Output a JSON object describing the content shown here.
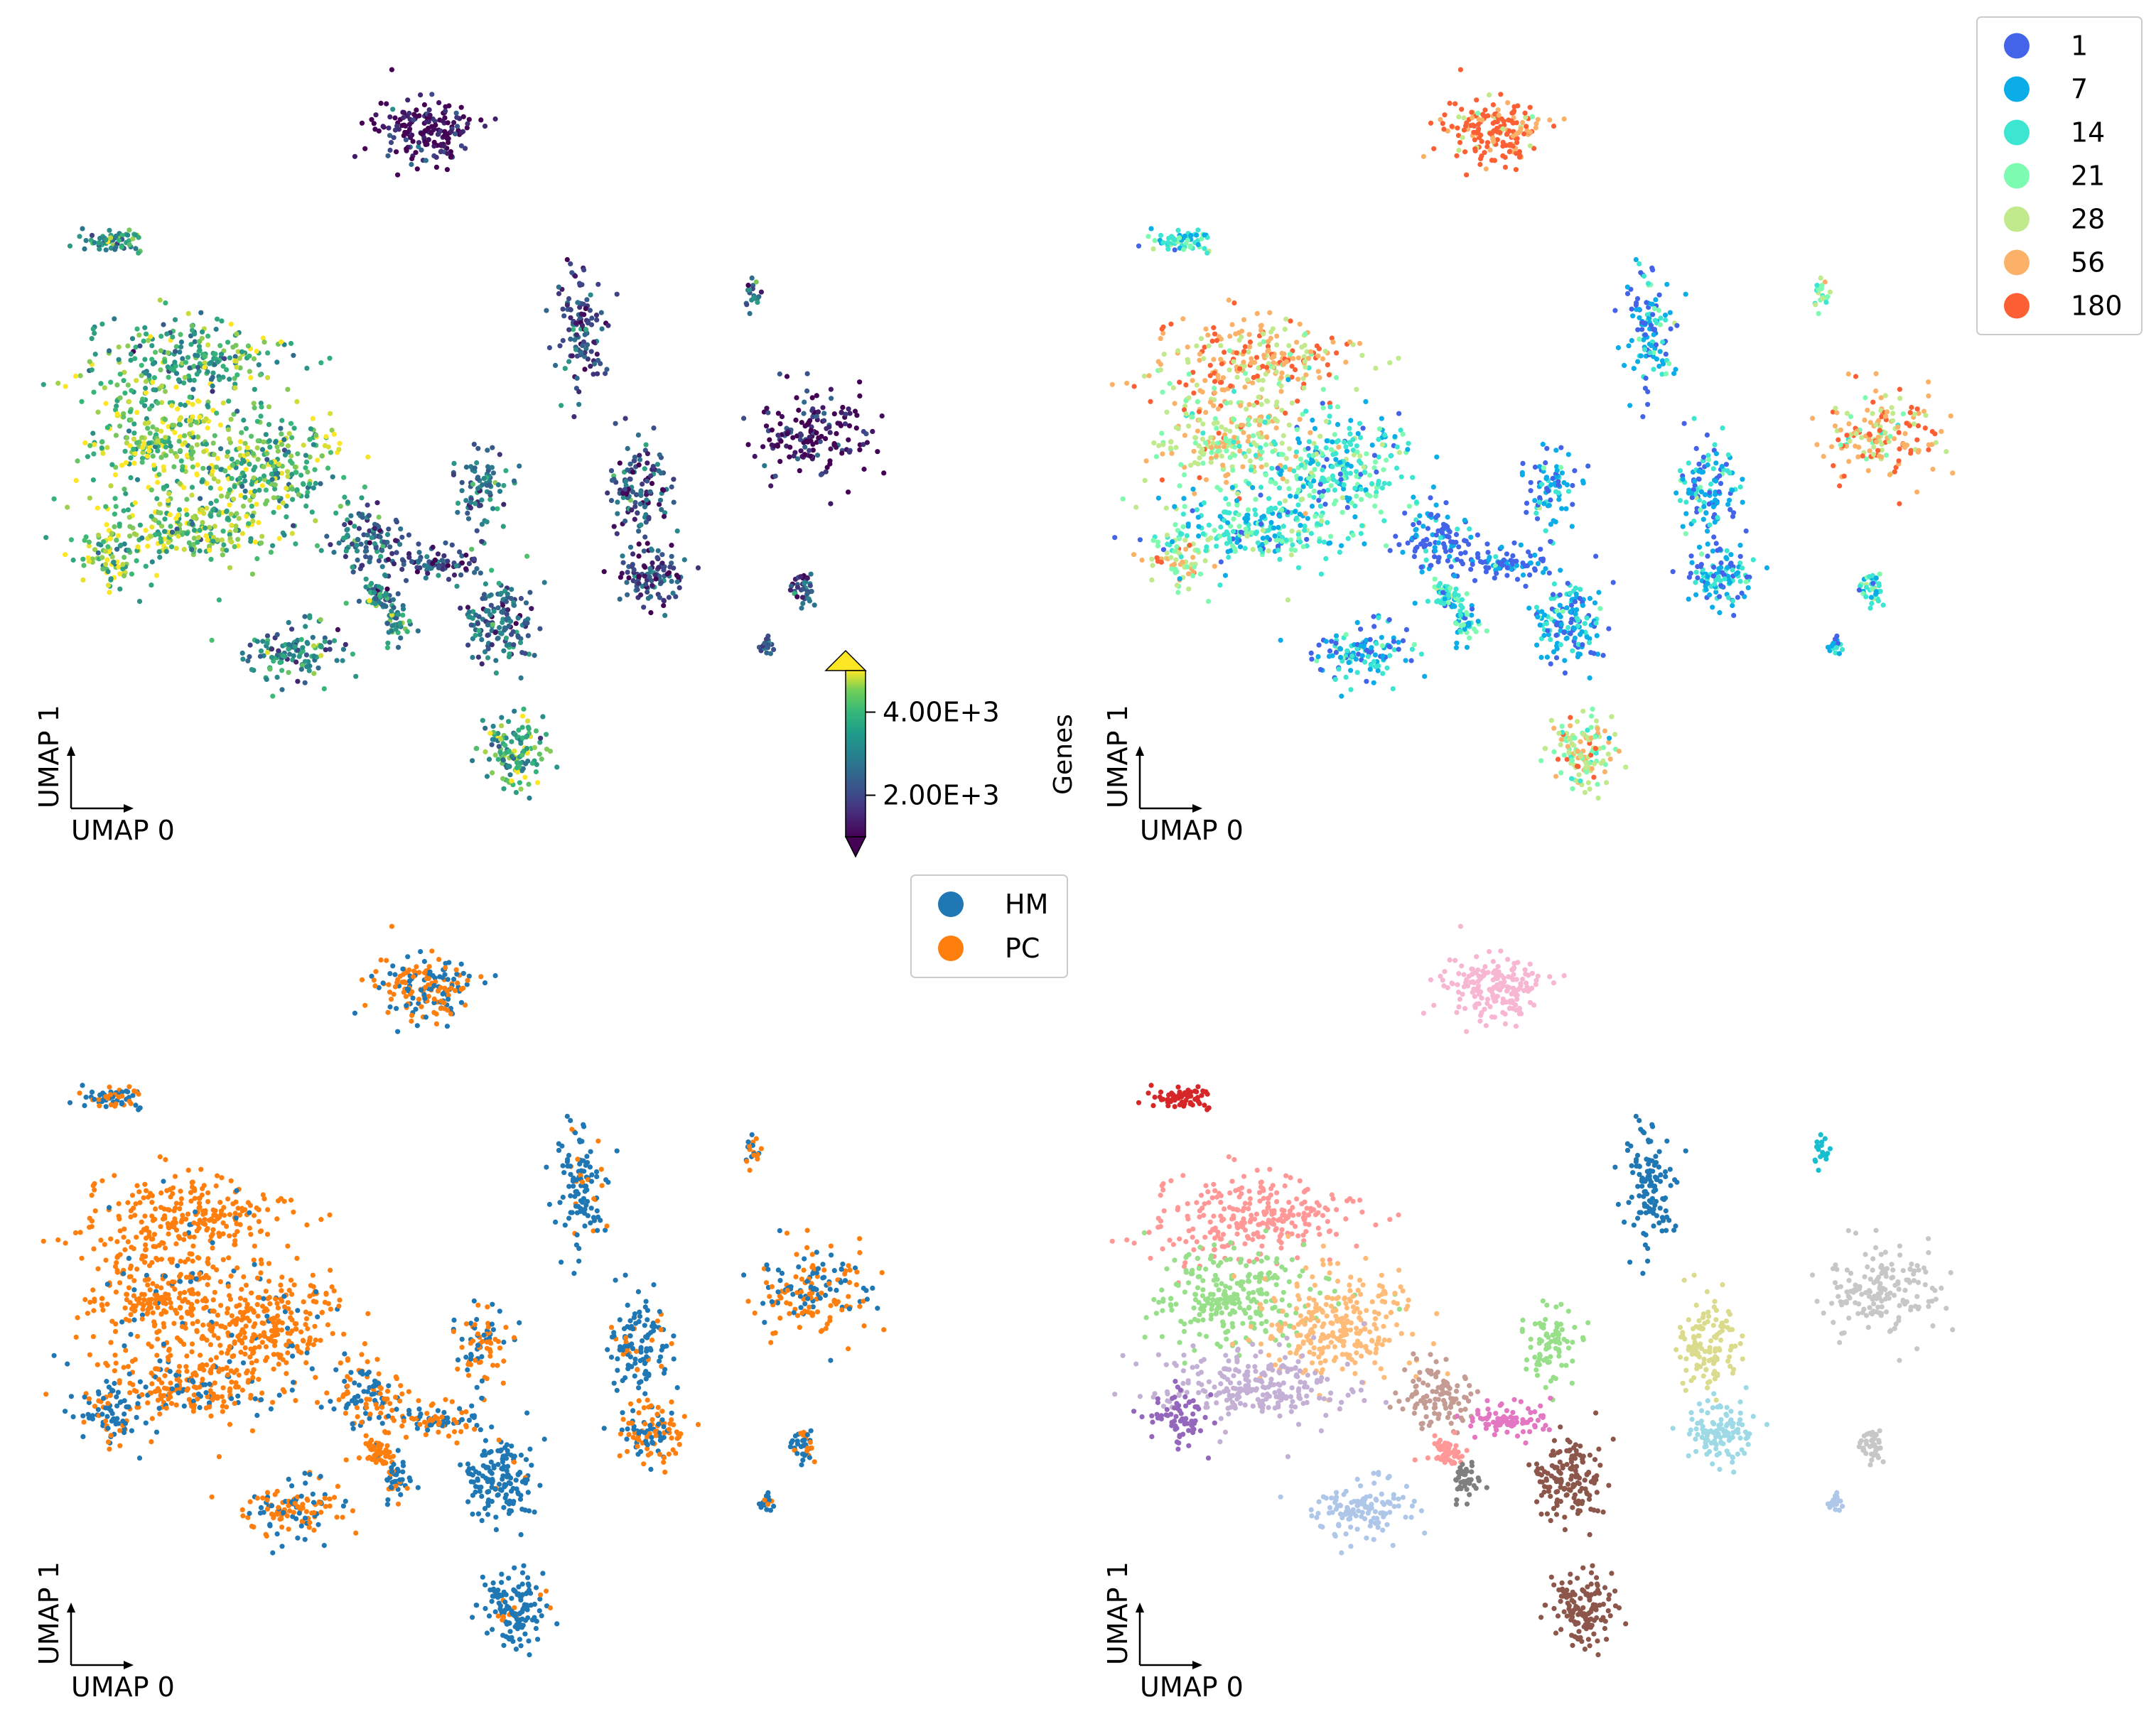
{
  "chart_data": [
    {
      "type": "scatter",
      "panel": "top-left",
      "color_by": "Genes",
      "xlabel": "UMAP 0",
      "ylabel": "UMAP 1",
      "colormap": "viridis",
      "colorbar": {
        "label": "Genes",
        "ticks": [
          {
            "value": 2000,
            "label": "2.00E+3"
          },
          {
            "value": 4000,
            "label": "4.00E+3"
          }
        ],
        "range": [
          1000,
          5000
        ],
        "extend": "both"
      }
    },
    {
      "type": "scatter",
      "panel": "top-right",
      "color_by": "day",
      "xlabel": "UMAP 0",
      "ylabel": "UMAP 1",
      "legend": {
        "placement": "top-right",
        "entries": [
          {
            "label": "1",
            "color": "#4363e8"
          },
          {
            "label": "7",
            "color": "#0aade8"
          },
          {
            "label": "14",
            "color": "#3ce6d0"
          },
          {
            "label": "21",
            "color": "#7dfbb0"
          },
          {
            "label": "28",
            "color": "#c0ea8c"
          },
          {
            "label": "56",
            "color": "#fcb169"
          },
          {
            "label": "180",
            "color": "#fd5f34"
          }
        ]
      }
    },
    {
      "type": "scatter",
      "panel": "bottom-left",
      "color_by": "group",
      "xlabel": "UMAP 0",
      "ylabel": "UMAP 1",
      "legend": {
        "placement": "right",
        "entries": [
          {
            "label": "HM",
            "color": "#1f77b4"
          },
          {
            "label": "PC",
            "color": "#ff7f0e"
          }
        ]
      }
    },
    {
      "type": "scatter",
      "panel": "bottom-right",
      "color_by": "cluster",
      "xlabel": "UMAP 0",
      "ylabel": "UMAP 1"
    }
  ]
}
